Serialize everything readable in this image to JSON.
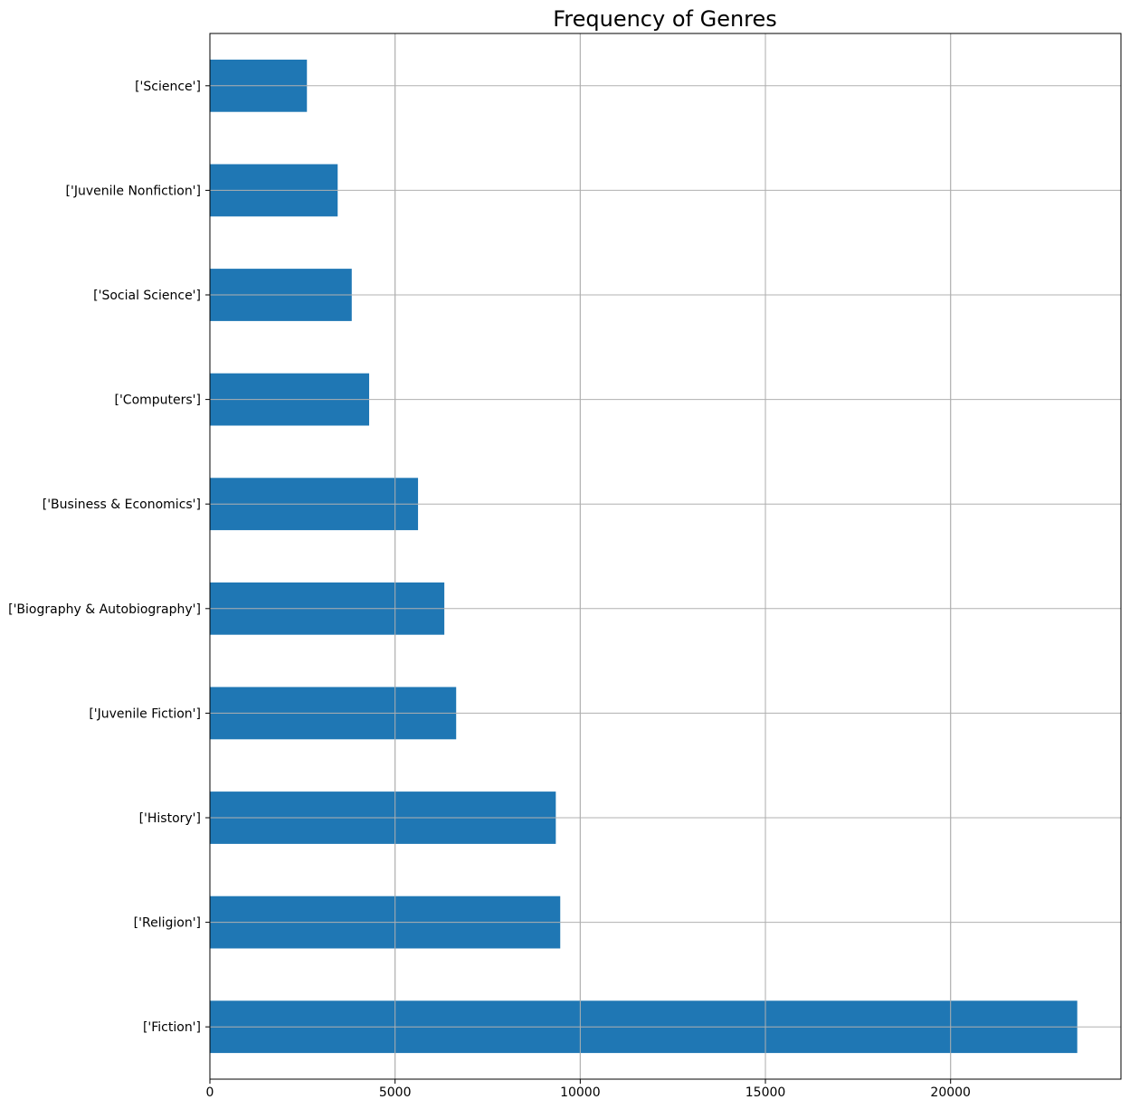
{
  "chart_data": {
    "type": "bar",
    "orientation": "horizontal",
    "title": "Frequency of Genres",
    "xlabel": "",
    "ylabel": "",
    "categories": [
      "['Fiction']",
      "['Religion']",
      "['History']",
      "['Juvenile Fiction']",
      "['Biography & Autobiography']",
      "['Business & Economics']",
      "['Computers']",
      "['Social Science']",
      "['Juvenile Nonfiction']",
      "['Science']"
    ],
    "values": [
      23420,
      9460,
      9340,
      6650,
      6330,
      5620,
      4300,
      3830,
      3450,
      2620
    ],
    "xlim": [
      0,
      24600
    ],
    "xticks": [
      0,
      5000,
      10000,
      15000,
      20000
    ],
    "xtick_labels": [
      "0",
      "5000",
      "10000",
      "15000",
      "20000"
    ],
    "grid": true,
    "bar_color": "#1f77b4",
    "grid_color": "#b0b0b0"
  }
}
